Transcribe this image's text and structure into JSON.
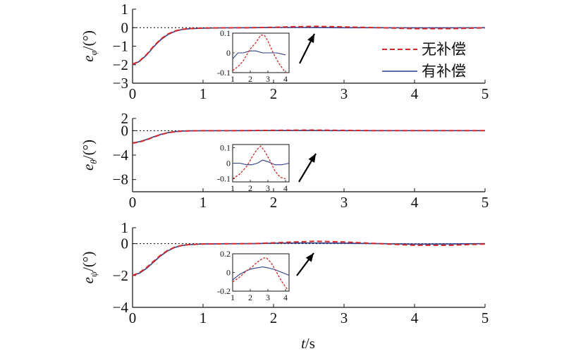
{
  "colors": {
    "no_comp": "#d62728",
    "with_comp": "#2b3f8f",
    "reference": "#000000",
    "axis": "#111111",
    "arrow": "#000000"
  },
  "x_axis": {
    "label_italic": "t",
    "label_unit": "/s",
    "ticks": [
      "0",
      "1",
      "2",
      "3",
      "4",
      "5"
    ],
    "xlim": [
      0,
      5
    ]
  },
  "legend": {
    "no_comp": "无补偿",
    "with_comp": "有补偿"
  },
  "chart_data": [
    {
      "type": "line",
      "ylabel": {
        "sym": "e",
        "sub": "φ",
        "unit": "/(°)"
      },
      "xlim": [
        0,
        5
      ],
      "ylim": [
        -3,
        1
      ],
      "yticks": [
        1,
        0,
        -1,
        -2,
        -3
      ],
      "reference_y": 0,
      "series": [
        {
          "name": "无补偿",
          "style": "dashed",
          "x": [
            0,
            0.1,
            0.2,
            0.3,
            0.4,
            0.5,
            0.6,
            0.7,
            0.8,
            1.0,
            1.3,
            1.7,
            2.0,
            2.3,
            2.6,
            3.0,
            3.5,
            4.0,
            4.5,
            5.0
          ],
          "y": [
            -1.98,
            -1.8,
            -1.45,
            -1.0,
            -0.62,
            -0.35,
            -0.18,
            -0.09,
            -0.05,
            -0.02,
            -0.01,
            0.0,
            0.02,
            0.05,
            0.07,
            0.04,
            0.0,
            -0.05,
            -0.05,
            -0.01
          ]
        },
        {
          "name": "有补偿",
          "style": "solid",
          "x": [
            0,
            0.1,
            0.2,
            0.3,
            0.4,
            0.5,
            0.6,
            0.7,
            0.8,
            1.0,
            1.3,
            1.7,
            2.0,
            2.5,
            3.0,
            3.5,
            4.0,
            4.5,
            5.0
          ],
          "y": [
            -2.0,
            -1.82,
            -1.48,
            -1.03,
            -0.65,
            -0.38,
            -0.2,
            -0.1,
            -0.06,
            -0.03,
            -0.01,
            0.0,
            0.01,
            0.01,
            0.0,
            0.0,
            -0.01,
            -0.01,
            0.0
          ]
        }
      ],
      "inset": {
        "xlim": [
          1,
          4.2
        ],
        "ylim": [
          -0.1,
          0.1
        ],
        "xticks": [
          "1",
          "2",
          "3",
          "4"
        ],
        "yticks": [
          "0.1",
          "0",
          "-0.1"
        ],
        "ytick_values": [
          0.1,
          0,
          -0.1
        ],
        "series": [
          {
            "name": "无补偿",
            "x": [
              1,
              1.3,
              1.6,
              2.0,
              2.3,
              2.6,
              2.8,
              3.0,
              3.3,
              3.6,
              4.0
            ],
            "y": [
              -0.09,
              -0.07,
              -0.04,
              0.02,
              0.05,
              0.09,
              0.09,
              0.06,
              0.0,
              -0.05,
              -0.1
            ]
          },
          {
            "name": "有补偿",
            "x": [
              1,
              1.3,
              1.6,
              2.0,
              2.3,
              2.7,
              3.0,
              3.5,
              4.0
            ],
            "y": [
              -0.03,
              0.0,
              0.0,
              0.01,
              0.01,
              0.0,
              0.0,
              0.0,
              -0.01
            ]
          }
        ]
      }
    },
    {
      "type": "line",
      "ylabel": {
        "sym": "e",
        "sub": "θ",
        "unit": "/(°)"
      },
      "xlim": [
        0,
        5
      ],
      "ylim": [
        -10,
        2
      ],
      "yticks": [
        2,
        0,
        -4,
        -8
      ],
      "reference_y": 0,
      "series": [
        {
          "name": "无补偿",
          "style": "dashed",
          "x": [
            0,
            0.1,
            0.2,
            0.3,
            0.4,
            0.5,
            0.6,
            0.7,
            0.8,
            1.0,
            1.5,
            2.0,
            2.5,
            3.0,
            3.5,
            4.0,
            4.5,
            5.0
          ],
          "y": [
            -2.05,
            -1.85,
            -1.5,
            -1.05,
            -0.65,
            -0.35,
            -0.17,
            -0.08,
            -0.04,
            -0.01,
            0.0,
            0.05,
            0.1,
            0.05,
            0.0,
            0.0,
            0.0,
            0.0
          ]
        },
        {
          "name": "有补偿",
          "style": "solid",
          "x": [
            0,
            0.1,
            0.2,
            0.3,
            0.4,
            0.5,
            0.6,
            0.7,
            0.8,
            1.0,
            1.5,
            2.0,
            2.5,
            3.0,
            3.5,
            4.0,
            4.5,
            5.0
          ],
          "y": [
            -2.0,
            -1.8,
            -1.45,
            -1.0,
            -0.62,
            -0.33,
            -0.16,
            -0.07,
            -0.03,
            -0.01,
            0.0,
            0.01,
            0.01,
            0.0,
            0.0,
            0.0,
            0.0,
            0.0
          ]
        }
      ],
      "inset": {
        "xlim": [
          1,
          4.2
        ],
        "ylim": [
          -0.12,
          0.12
        ],
        "xticks": [
          "1",
          "2",
          "3",
          "4"
        ],
        "yticks": [
          "0.1",
          "0",
          "-0.1"
        ],
        "ytick_values": [
          0.1,
          0,
          -0.1
        ],
        "series": [
          {
            "name": "无补偿",
            "x": [
              1,
              1.4,
              1.8,
              2.1,
              2.4,
              2.6,
              2.8,
              3.1,
              3.4,
              3.7,
              4.0
            ],
            "y": [
              -0.1,
              -0.07,
              -0.02,
              0.04,
              0.09,
              0.11,
              0.08,
              0.02,
              -0.05,
              -0.09,
              -0.1
            ]
          },
          {
            "name": "有补偿",
            "x": [
              1,
              1.4,
              1.8,
              2.1,
              2.4,
              2.7,
              3.0,
              3.4,
              3.8,
              4.2
            ],
            "y": [
              0.0,
              0.0,
              -0.01,
              -0.01,
              0.0,
              0.02,
              0.01,
              -0.01,
              -0.01,
              0.0
            ]
          }
        ]
      }
    },
    {
      "type": "line",
      "ylabel": {
        "sym": "e",
        "sub": "ψ",
        "unit": "/(°)"
      },
      "xlim": [
        0,
        5
      ],
      "ylim": [
        -4,
        1
      ],
      "yticks": [
        1,
        0,
        -2,
        -4
      ],
      "reference_y": 0,
      "series": [
        {
          "name": "无补偿",
          "style": "dashed",
          "x": [
            0,
            0.1,
            0.2,
            0.3,
            0.4,
            0.5,
            0.6,
            0.7,
            0.8,
            1.0,
            1.3,
            1.7,
            2.0,
            2.3,
            2.6,
            3.0,
            3.5,
            4.0,
            4.5,
            5.0
          ],
          "y": [
            -2.0,
            -1.82,
            -1.5,
            -1.1,
            -0.72,
            -0.42,
            -0.22,
            -0.11,
            -0.06,
            -0.02,
            -0.01,
            0.0,
            0.05,
            0.1,
            0.15,
            0.1,
            0.0,
            -0.1,
            -0.1,
            -0.02
          ]
        },
        {
          "name": "有补偿",
          "style": "solid",
          "x": [
            0,
            0.1,
            0.2,
            0.3,
            0.4,
            0.5,
            0.6,
            0.7,
            0.8,
            1.0,
            1.3,
            1.7,
            2.0,
            2.5,
            3.0,
            3.5,
            4.0,
            4.5,
            5.0
          ],
          "y": [
            -2.0,
            -1.85,
            -1.55,
            -1.15,
            -0.76,
            -0.45,
            -0.24,
            -0.12,
            -0.06,
            -0.02,
            -0.01,
            0.0,
            0.02,
            0.04,
            0.02,
            0.0,
            -0.03,
            -0.02,
            0.0
          ]
        }
      ],
      "inset": {
        "xlim": [
          1,
          4.2
        ],
        "ylim": [
          -0.2,
          0.2
        ],
        "xticks": [
          "1",
          "2",
          "3",
          "4"
        ],
        "yticks": [
          "0.2",
          "0",
          "-0.2"
        ],
        "ytick_values": [
          0.2,
          0,
          -0.2
        ],
        "series": [
          {
            "name": "无补偿",
            "x": [
              1,
              1.4,
              1.8,
              2.1,
              2.4,
              2.7,
              2.9,
              3.2,
              3.5,
              3.8,
              4.1
            ],
            "y": [
              -0.1,
              -0.05,
              0.02,
              0.06,
              0.11,
              0.15,
              0.16,
              0.1,
              0.0,
              -0.1,
              -0.18
            ]
          },
          {
            "name": "有补偿",
            "x": [
              1,
              1.4,
              1.8,
              2.1,
              2.4,
              2.7,
              3.0,
              3.4,
              3.8,
              4.2
            ],
            "y": [
              -0.08,
              -0.02,
              0.02,
              0.04,
              0.05,
              0.06,
              0.05,
              0.03,
              0.0,
              -0.03
            ]
          }
        ]
      }
    }
  ]
}
